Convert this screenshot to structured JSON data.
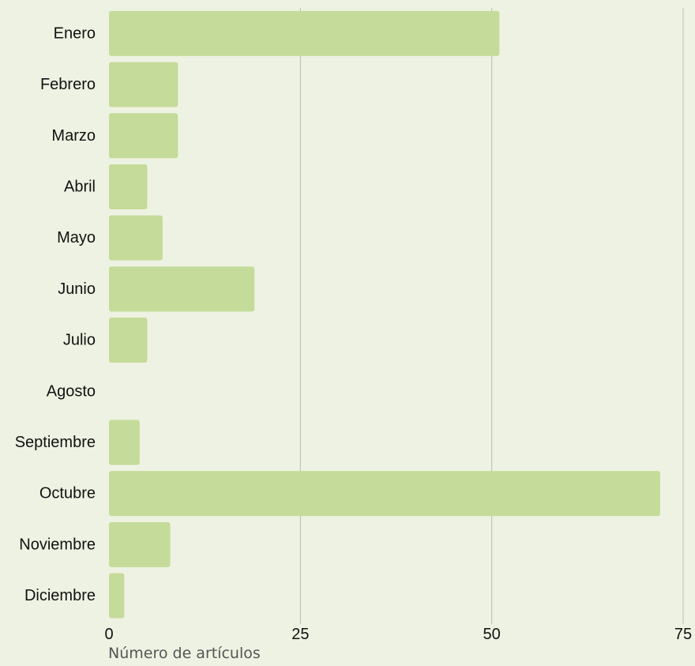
{
  "chart_data": {
    "type": "bar",
    "orientation": "horizontal",
    "categories": [
      "Enero",
      "Febrero",
      "Marzo",
      "Abril",
      "Mayo",
      "Junio",
      "Julio",
      "Agosto",
      "Septiembre",
      "Octubre",
      "Noviembre",
      "Diciembre"
    ],
    "values": [
      51,
      9,
      9,
      5,
      7,
      19,
      5,
      0,
      4,
      72,
      8,
      2
    ],
    "xlabel": "Número de artículos",
    "ylabel": "",
    "xlim": [
      0,
      75
    ],
    "xticks": [
      "0",
      "25",
      "50",
      "75"
    ],
    "grid": true,
    "legend": "none"
  },
  "colors": {
    "background": "#eef2e2",
    "bar": "#c5db9a",
    "gridline": "#b7bcb0",
    "text": "#111111",
    "axis_title": "#555555"
  }
}
